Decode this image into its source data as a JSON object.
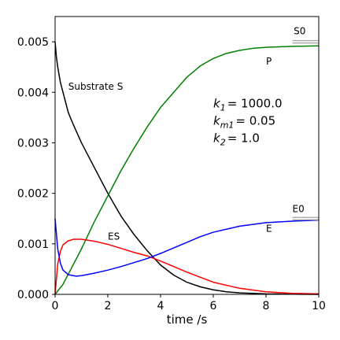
{
  "chart_data": {
    "type": "line",
    "title": "",
    "xlabel": "time /s",
    "ylabel": "",
    "xlim": [
      0,
      10
    ],
    "ylim": [
      0,
      0.0055
    ],
    "xticks": [
      0,
      2,
      4,
      6,
      8,
      10
    ],
    "xtick_labels": [
      "0",
      "2",
      "4",
      "6",
      "8",
      "10"
    ],
    "yticks": [
      0,
      0.001,
      0.002,
      0.003,
      0.004,
      0.005
    ],
    "ytick_labels": [
      "0.000",
      "0.001",
      "0.002",
      "0.003",
      "0.004",
      "0.005"
    ],
    "grid": false,
    "series": [
      {
        "label": "Substrate S",
        "color": "#000000",
        "x": [
          0,
          0.05,
          0.1,
          0.2,
          0.3,
          0.4,
          0.5,
          0.7,
          1.0,
          1.5,
          2.0,
          2.5,
          3.0,
          3.5,
          4.0,
          4.5,
          5.0,
          5.5,
          6.0,
          6.5,
          7.0,
          8.0,
          9.0,
          10.0
        ],
        "y": [
          0.005,
          0.0047,
          0.0045,
          0.0042,
          0.004,
          0.0038,
          0.0036,
          0.00335,
          0.003,
          0.0025,
          0.002,
          0.00155,
          0.00118,
          0.00086,
          0.00058,
          0.00038,
          0.00024,
          0.00015,
          9e-05,
          5e-05,
          3e-05,
          1e-05,
          3e-06,
          1e-06
        ]
      },
      {
        "label": "P",
        "color": "#008000",
        "x": [
          0,
          0.3,
          0.5,
          1.0,
          1.5,
          2.0,
          2.5,
          3.0,
          3.5,
          4.0,
          4.5,
          5.0,
          5.5,
          6.0,
          6.5,
          7.0,
          7.5,
          8.0,
          9.0,
          10.0
        ],
        "y": [
          0,
          0.0002,
          0.0004,
          0.0009,
          0.00145,
          0.00195,
          0.00245,
          0.0029,
          0.00332,
          0.0037,
          0.004,
          0.0043,
          0.00452,
          0.00467,
          0.00477,
          0.00483,
          0.00487,
          0.00489,
          0.00491,
          0.00492
        ]
      },
      {
        "label": "ES",
        "color": "#ff0000",
        "x": [
          0,
          0.1,
          0.2,
          0.3,
          0.5,
          0.7,
          1.0,
          1.5,
          2.0,
          2.5,
          3.0,
          3.5,
          4.0,
          4.5,
          5.0,
          5.5,
          6.0,
          7.0,
          8.0,
          9.0,
          10.0
        ],
        "y": [
          0,
          0.0006,
          0.00085,
          0.00098,
          0.00106,
          0.00109,
          0.00109,
          0.00105,
          0.00099,
          0.00091,
          0.00083,
          0.00076,
          0.00066,
          0.00055,
          0.00044,
          0.00034,
          0.00024,
          0.00012,
          5e-05,
          2e-05,
          1e-05
        ]
      },
      {
        "label": "E",
        "color": "#0000ff",
        "x": [
          0,
          0.1,
          0.2,
          0.3,
          0.5,
          0.8,
          1.0,
          1.5,
          2.0,
          2.5,
          3.0,
          3.5,
          4.0,
          4.5,
          5.0,
          5.5,
          6.0,
          7.0,
          8.0,
          9.0,
          10.0
        ],
        "y": [
          0.0015,
          0.0009,
          0.00062,
          0.00048,
          0.00039,
          0.00036,
          0.00037,
          0.00042,
          0.00048,
          0.00055,
          0.00063,
          0.00071,
          0.00081,
          0.00092,
          0.00103,
          0.00114,
          0.00123,
          0.00135,
          0.00142,
          0.00145,
          0.00147
        ]
      }
    ],
    "reference_lines": [
      {
        "label": "S0",
        "y": 0.005,
        "x_start": 9.0,
        "x_end": 10.0,
        "color": "#a0a0a0"
      },
      {
        "label": "E0",
        "y": 0.0015,
        "x_start": 9.0,
        "x_end": 10.0,
        "color": "#a0a0a0"
      }
    ],
    "annotations": [
      {
        "text": "Substrate S",
        "x": 0.5,
        "y": 0.00405
      },
      {
        "text": "P",
        "x": 8.0,
        "y": 0.00455
      },
      {
        "text": "ES",
        "x": 2.0,
        "y": 0.00108
      },
      {
        "text": "E",
        "x": 8.0,
        "y": 0.00124
      },
      {
        "text": "S0",
        "x": 9.05,
        "y": 0.00515
      },
      {
        "text": "E0",
        "x": 9.0,
        "y": 0.00163
      }
    ],
    "parameters": [
      {
        "symbol": "k",
        "sub": "1",
        "value": "= 1000.0"
      },
      {
        "symbol": "k",
        "sub": "m1",
        "value": "= 0.05"
      },
      {
        "symbol": "k",
        "sub": "2",
        "value": "= 1.0"
      }
    ],
    "parameters_anchor": {
      "x": 6.0,
      "y": 0.0037
    }
  }
}
